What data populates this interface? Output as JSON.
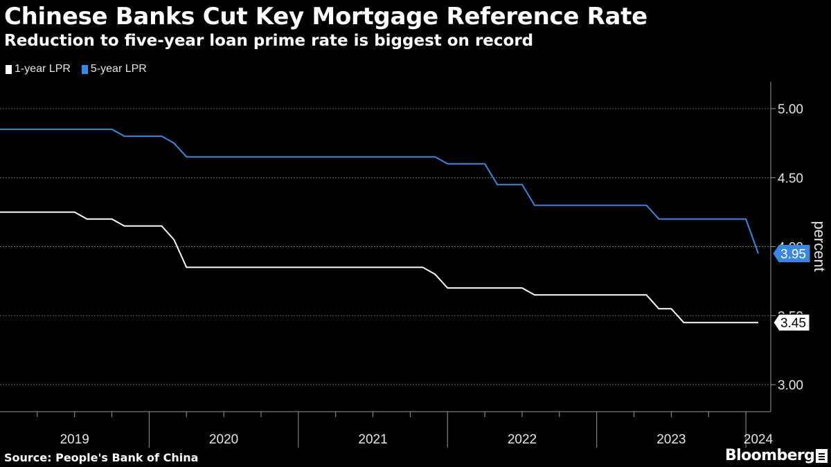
{
  "header": {
    "title": "Chinese Banks Cut Key Mortgage Reference Rate",
    "subtitle": "Reduction to five-year loan prime rate is biggest on record"
  },
  "footer": {
    "source": "Source: People's Bank of China",
    "brand": "Bloomberg"
  },
  "colors": {
    "background": "#000000",
    "one_year": "#ffffff",
    "five_year": "#3a87e0",
    "grid": "#6e6e6e"
  },
  "chart_data": {
    "type": "line",
    "title": "Chinese Banks Cut Key Mortgage Reference Rate",
    "subtitle": "Reduction to five-year loan prime rate is biggest on record",
    "xlabel": "",
    "ylabel": "percent",
    "ylim": [
      2.8,
      5.2
    ],
    "yticks": [
      3.0,
      3.5,
      4.0,
      4.5,
      5.0
    ],
    "ytick_labels": [
      "3.00",
      "3.50",
      "4.00",
      "4.50",
      "5.00"
    ],
    "xlim": [
      "2019-01",
      "2024-03"
    ],
    "x_year_labels": [
      "2019",
      "2020",
      "2021",
      "2022",
      "2023",
      "2024"
    ],
    "legend_position": "top-left",
    "grid": "horizontal dotted",
    "x": [
      "2019-01",
      "2019-04",
      "2019-07",
      "2019-08",
      "2019-09",
      "2019-10",
      "2019-11",
      "2020-01",
      "2020-02",
      "2020-03",
      "2020-04",
      "2020-05",
      "2021-11",
      "2021-12",
      "2022-01",
      "2022-02",
      "2022-04",
      "2022-05",
      "2022-06",
      "2022-07",
      "2022-08",
      "2022-09",
      "2023-01",
      "2023-05",
      "2023-06",
      "2023-07",
      "2023-08",
      "2023-12",
      "2024-01",
      "2024-02"
    ],
    "series": [
      {
        "name": "1-year LPR",
        "color": "#ffffff",
        "values": [
          4.25,
          4.25,
          4.25,
          4.2,
          4.2,
          4.2,
          4.15,
          4.15,
          4.15,
          4.05,
          3.85,
          3.85,
          3.85,
          3.8,
          3.7,
          3.7,
          3.7,
          3.7,
          3.7,
          3.7,
          3.65,
          3.65,
          3.65,
          3.65,
          3.55,
          3.55,
          3.45,
          3.45,
          3.45,
          3.45
        ],
        "end_label": "3.45"
      },
      {
        "name": "5-year LPR",
        "color": "#3a87e0",
        "values": [
          4.85,
          4.85,
          4.85,
          4.85,
          4.85,
          4.85,
          4.8,
          4.8,
          4.8,
          4.75,
          4.65,
          4.65,
          4.65,
          4.65,
          4.6,
          4.6,
          4.6,
          4.45,
          4.45,
          4.45,
          4.3,
          4.3,
          4.3,
          4.3,
          4.2,
          4.2,
          4.2,
          4.2,
          4.2,
          3.95
        ],
        "end_label": "3.95"
      }
    ]
  }
}
